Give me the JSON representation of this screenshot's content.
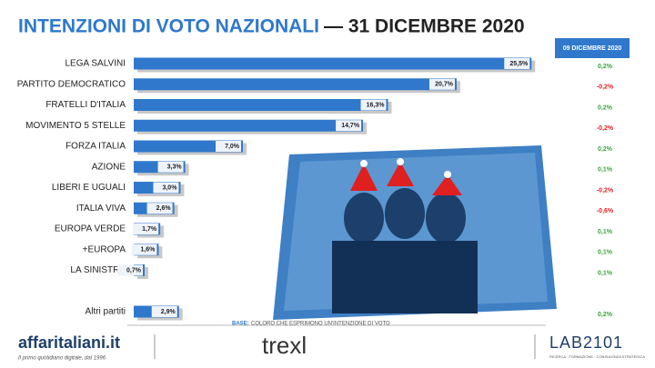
{
  "chart_data": {
    "type": "bar",
    "orientation": "horizontal",
    "title": "INTENZIONI DI VOTO NAZIONALI",
    "title_date": "— 31 DICEMBRE 2020",
    "categories": [
      "LEGA SALVINI",
      "PARTITO DEMOCRATICO",
      "FRATELLI D'ITALIA",
      "MOVIMENTO 5 STELLE",
      "FORZA ITALIA",
      "AZIONE",
      "LIBERI E UGUALI",
      "ITALIA VIVA",
      "EUROPA VERDE",
      "+EUROPA",
      "LA SINISTRA",
      null,
      "Altri partiti"
    ],
    "values": [
      25.5,
      20.7,
      16.3,
      14.7,
      7.0,
      3.3,
      3.0,
      2.6,
      1.7,
      1.6,
      0.7,
      null,
      2.9
    ],
    "value_labels": [
      "25,5%",
      "20,7%",
      "16,3%",
      "14,7%",
      "7,0%",
      "3,3%",
      "3,0%",
      "2,6%",
      "1,7%",
      "1,6%",
      "0,7%",
      null,
      "2,9%"
    ],
    "color": "#2f78cc",
    "xlim": [
      0,
      27
    ],
    "change_header": "09 DICEMBRE 2020",
    "change_values": [
      0.2,
      -0.2,
      0.2,
      -0.2,
      0.2,
      0.1,
      -0.2,
      -0.6,
      0.1,
      0.1,
      0.1,
      null,
      0.2
    ],
    "change_labels": [
      "0,2%",
      "-0,2%",
      "0,2%",
      "-0,2%",
      "0,2%",
      "0,1%",
      "-0,2%",
      "-0,6%",
      "0,1%",
      "0,1%",
      "0,1%",
      null,
      "0,2%"
    ],
    "positive_color": "#3aa53a",
    "negative_color": "#e02020"
  },
  "footer": {
    "base_label": "BASE:",
    "base_text": "COLORO CHE ESPRIMONO UN'INTENZIONE DI VOTO",
    "logo_left": "affaritaliani.it",
    "logo_left_tagline": "Il primo quotidiano digitale, dal 1996",
    "logo_center": "trexl",
    "logo_right": "LAB2101",
    "logo_right_tagline": "RICERCA · FORMAZIONE · CONSULENZA STRATEGICA"
  }
}
